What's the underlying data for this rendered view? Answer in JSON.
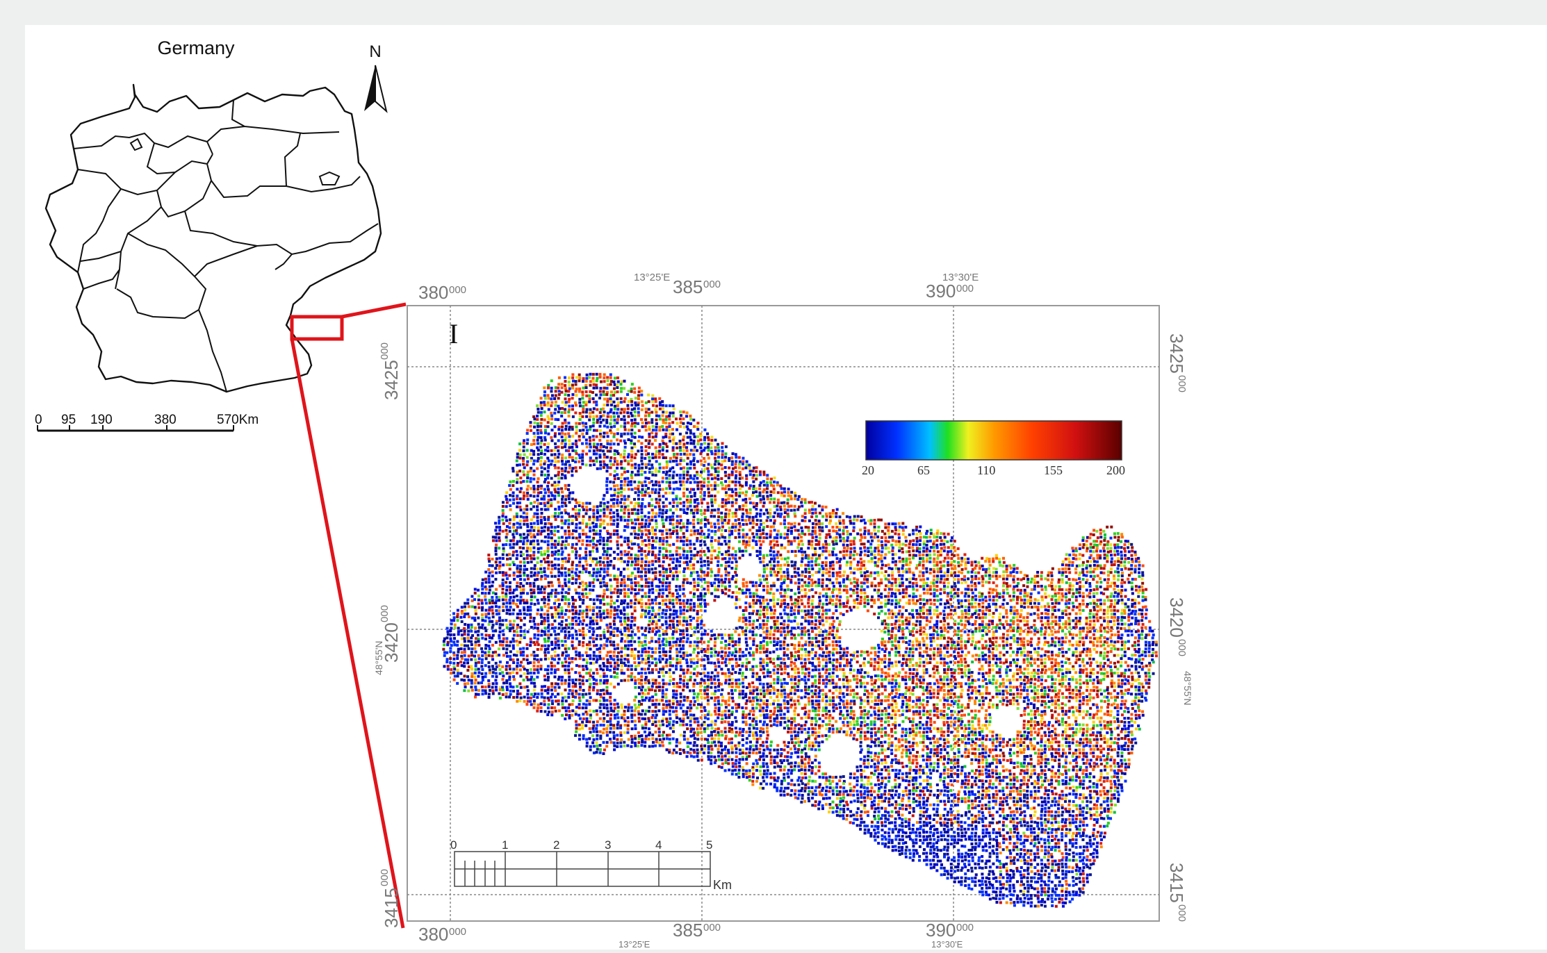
{
  "inset": {
    "title": "Germany",
    "north_label": "N",
    "scale_ticks": [
      "0",
      "95",
      "190",
      "380",
      "570Km"
    ]
  },
  "main_map": {
    "top_easting": [
      "380",
      "000",
      "385",
      "000",
      "390",
      "000"
    ],
    "top_lon": [
      "13°25'E",
      "13°30'E"
    ],
    "bottom_easting": [
      "380",
      "000",
      "385",
      "000",
      "390",
      "000"
    ],
    "bottom_lon": [
      "13°25'E",
      "13°30'E"
    ],
    "left_northing": [
      "3425",
      "000",
      "3420",
      "000",
      "3415",
      "000"
    ],
    "left_lat": "48°55'N",
    "right_northing": [
      "3425",
      "000",
      "3420",
      "000",
      "3415",
      "000"
    ],
    "right_lat": "48°55'N",
    "panel_label": "I",
    "colorbar_ticks": [
      "20",
      "65",
      "110",
      "155",
      "200"
    ],
    "scalebar_ticks": [
      "0",
      "1",
      "2",
      "3",
      "4",
      "5"
    ],
    "scalebar_unit": "Km"
  },
  "colors": {
    "highlight": "#e0141b",
    "ramp": [
      "#0000a0",
      "#0030ff",
      "#00c0ff",
      "#20e020",
      "#f0f020",
      "#ff9a00",
      "#ff4000",
      "#d01010",
      "#5a0000"
    ]
  }
}
